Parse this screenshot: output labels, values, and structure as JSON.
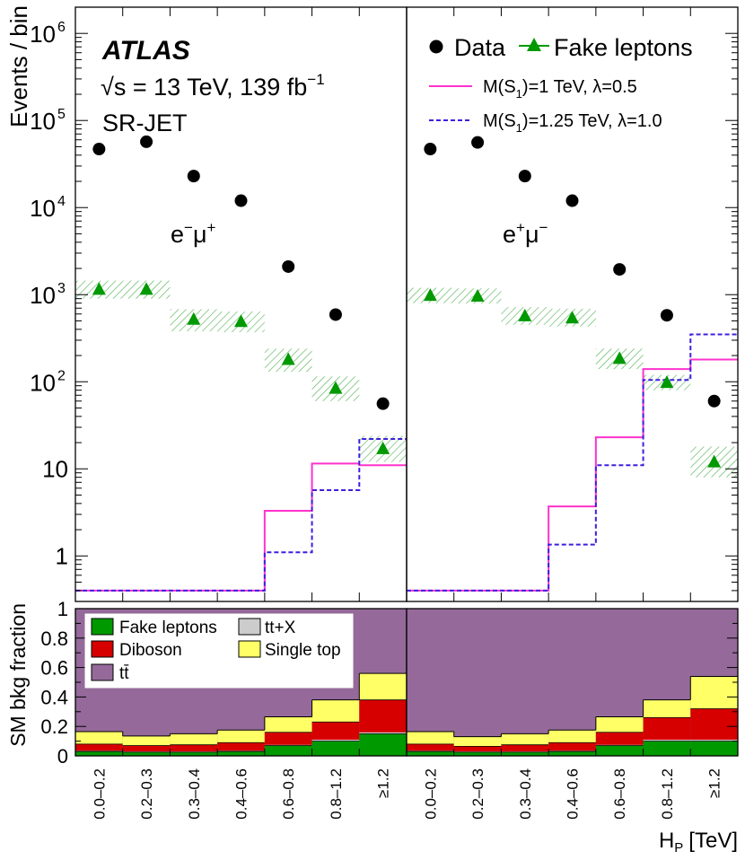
{
  "chart_data": {
    "type": "histogram",
    "experiment": "ATLAS",
    "energy_label": "√s = 13 TeV, 139 fb",
    "lumi_exponent": "−1",
    "region": "SR-JET",
    "top_ylabel": "Events / bin",
    "bottom_ylabel": "SM bkg fraction",
    "xlabel": "H",
    "xlabel_sub": "P",
    "xlabel_unit": "[TeV]",
    "categories": [
      "0.0–0.2",
      "0.2–0.3",
      "0.3–0.4",
      "0.4–0.6",
      "0.6–0.8",
      "0.8–1.2",
      "≥1.2"
    ],
    "ylim_top": [
      0.3,
      2000000
    ],
    "ylim_bottom": [
      0,
      1
    ],
    "top_ytick_labels": {
      "main": [
        "1",
        "10"
      ],
      "pow": [
        {
          "base": "10",
          "exp": "2"
        },
        {
          "base": "10",
          "exp": "3"
        },
        {
          "base": "10",
          "exp": "4"
        },
        {
          "base": "10",
          "exp": "5"
        },
        {
          "base": "10",
          "exp": "6"
        }
      ]
    },
    "bottom_ytick_labels": [
      "0",
      "0.2",
      "0.4",
      "0.6",
      "0.8",
      "1"
    ],
    "legend": {
      "data": "Data",
      "fake": "Fake leptons",
      "sig1": "M(S",
      "sig1_sub": "1",
      "sig1_rest": ")=1 TeV, λ=0.5",
      "sig2": "M(S",
      "sig2_sub": "1",
      "sig2_rest": ")=1.25 TeV, λ=1.0"
    },
    "bottom_legend": [
      "Fake leptons",
      "tt+X",
      "Diboson",
      "Single top",
      "tt̄"
    ],
    "colors": {
      "fake": "#009900",
      "diboson": "#d60000",
      "singletop": "#ffff66",
      "ttbar": "#956a9a",
      "ttx": "#cccccc",
      "sig1": "#ff33cc",
      "sig2": "#3d1fe0",
      "hatch": "#4caf50"
    },
    "panels": [
      {
        "name": "e−μ+",
        "label_base1": "e",
        "label_sup1": "−",
        "label_base2": "μ",
        "label_sup2": "+",
        "data": [
          47000,
          57000,
          23000,
          12000,
          2100,
          590,
          56
        ],
        "fake": [
          1150,
          1150,
          520,
          490,
          180,
          84,
          17
        ],
        "fake_band": [
          [
            900,
            1450
          ],
          [
            900,
            1450
          ],
          [
            380,
            680
          ],
          [
            370,
            640
          ],
          [
            130,
            240
          ],
          [
            60,
            115
          ],
          [
            12,
            24
          ]
        ],
        "sig1": [
          0.4,
          0.4,
          0.4,
          0.4,
          3.3,
          11.5,
          11
        ],
        "sig2": [
          0.4,
          0.4,
          0.4,
          0.4,
          1.1,
          5.7,
          22
        ],
        "frac_fake": [
          0.03,
          0.025,
          0.025,
          0.03,
          0.07,
          0.1,
          0.15
        ],
        "frac_ttx": [
          0.005,
          0.005,
          0.005,
          0.005,
          0.005,
          0.01,
          0.01
        ],
        "frac_diboson": [
          0.045,
          0.04,
          0.045,
          0.055,
          0.085,
          0.12,
          0.22
        ],
        "frac_singletop": [
          0.085,
          0.065,
          0.075,
          0.085,
          0.105,
          0.15,
          0.18
        ]
      },
      {
        "name": "e+μ−",
        "label_base1": "e",
        "label_sup1": "+",
        "label_base2": "μ",
        "label_sup2": "−",
        "data": [
          47000,
          56000,
          23000,
          12000,
          1950,
          580,
          60
        ],
        "fake": [
          980,
          960,
          570,
          540,
          185,
          98,
          12
        ],
        "fake_band": [
          [
            800,
            1200
          ],
          [
            790,
            1180
          ],
          [
            450,
            720
          ],
          [
            430,
            690
          ],
          [
            140,
            240
          ],
          [
            80,
            120
          ],
          [
            8,
            18
          ]
        ],
        "sig1": [
          0.4,
          0.4,
          0.4,
          3.7,
          23,
          140,
          180
        ],
        "sig2": [
          0.4,
          0.4,
          0.4,
          1.35,
          11,
          105,
          350
        ],
        "frac_fake": [
          0.03,
          0.025,
          0.025,
          0.03,
          0.07,
          0.1,
          0.1
        ],
        "frac_ttx": [
          0.005,
          0.005,
          0.005,
          0.005,
          0.005,
          0.01,
          0.01
        ],
        "frac_diboson": [
          0.045,
          0.035,
          0.045,
          0.055,
          0.085,
          0.15,
          0.21
        ],
        "frac_singletop": [
          0.085,
          0.065,
          0.075,
          0.085,
          0.105,
          0.12,
          0.22
        ]
      }
    ]
  }
}
